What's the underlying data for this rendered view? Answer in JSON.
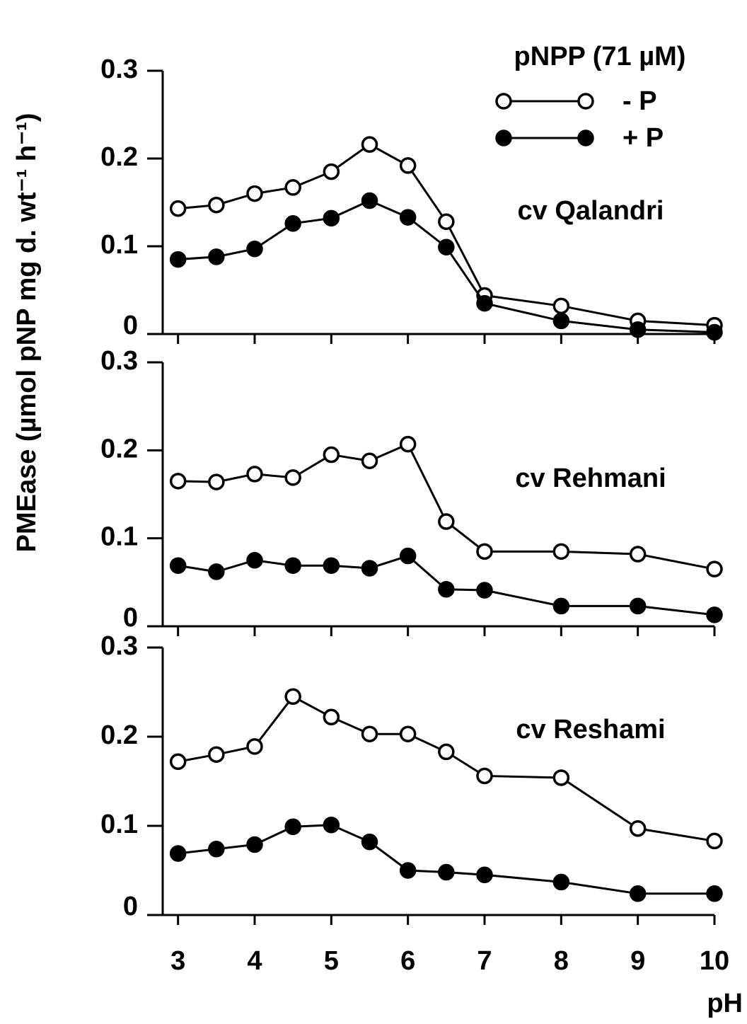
{
  "chart_data": [
    {
      "type": "line",
      "annotation": "cv Qalandri",
      "legend": true,
      "legend_title": "pNPP (71 µM)",
      "y_label": "PMEase (µmol pNP mg d. wt⁻¹ h⁻¹)",
      "x": [
        3,
        3.5,
        4,
        4.5,
        5,
        5.5,
        6,
        6.5,
        7,
        8,
        9,
        10
      ],
      "series": [
        {
          "name": "- P",
          "color": "#000000",
          "marker_fill": "#ffffff",
          "values": [
            0.143,
            0.147,
            0.16,
            0.167,
            0.185,
            0.216,
            0.192,
            0.128,
            0.044,
            0.032,
            0.015,
            0.01
          ]
        },
        {
          "name": "+ P",
          "color": "#000000",
          "marker_fill": "#000000",
          "values": [
            0.085,
            0.088,
            0.097,
            0.126,
            0.132,
            0.152,
            0.133,
            0.099,
            0.035,
            0.015,
            0.005,
            0.002
          ]
        }
      ],
      "xlim": [
        2.8,
        10
      ],
      "ylim": [
        0,
        0.3
      ],
      "yticks": [
        0,
        0.1,
        0.2,
        0.3
      ]
    },
    {
      "type": "line",
      "annotation": "cv Rehmani",
      "legend": false,
      "x": [
        3,
        3.5,
        4,
        4.5,
        5,
        5.5,
        6,
        6.5,
        7,
        8,
        9,
        10
      ],
      "series": [
        {
          "name": "- P",
          "color": "#000000",
          "marker_fill": "#ffffff",
          "values": [
            0.165,
            0.164,
            0.173,
            0.169,
            0.195,
            0.188,
            0.207,
            0.119,
            0.085,
            0.085,
            0.082,
            0.065
          ]
        },
        {
          "name": "+ P",
          "color": "#000000",
          "marker_fill": "#000000",
          "values": [
            0.069,
            0.062,
            0.075,
            0.069,
            0.069,
            0.066,
            0.08,
            0.042,
            0.041,
            0.023,
            0.023,
            0.013
          ]
        }
      ],
      "xlim": [
        2.8,
        10
      ],
      "ylim": [
        0,
        0.3
      ],
      "yticks": [
        0,
        0.1,
        0.2,
        0.3
      ]
    },
    {
      "type": "line",
      "annotation": "cv Reshami",
      "legend": false,
      "x_label": "pH",
      "x": [
        3,
        3.5,
        4,
        4.5,
        5,
        5.5,
        6,
        6.5,
        7,
        8,
        9,
        10
      ],
      "series": [
        {
          "name": "- P",
          "color": "#000000",
          "marker_fill": "#ffffff",
          "values": [
            0.172,
            0.18,
            0.189,
            0.245,
            0.222,
            0.203,
            0.203,
            0.183,
            0.156,
            0.154,
            0.097,
            0.083
          ]
        },
        {
          "name": "+ P",
          "color": "#000000",
          "marker_fill": "#000000",
          "values": [
            0.069,
            0.074,
            0.079,
            0.099,
            0.101,
            0.082,
            0.05,
            0.048,
            0.045,
            0.037,
            0.024,
            0.024
          ]
        }
      ],
      "xlim": [
        2.8,
        10
      ],
      "ylim": [
        0,
        0.3
      ],
      "yticks": [
        0,
        0.1,
        0.2,
        0.3
      ],
      "xticks": [
        3,
        4,
        5,
        6,
        7,
        8,
        9,
        10
      ]
    }
  ]
}
